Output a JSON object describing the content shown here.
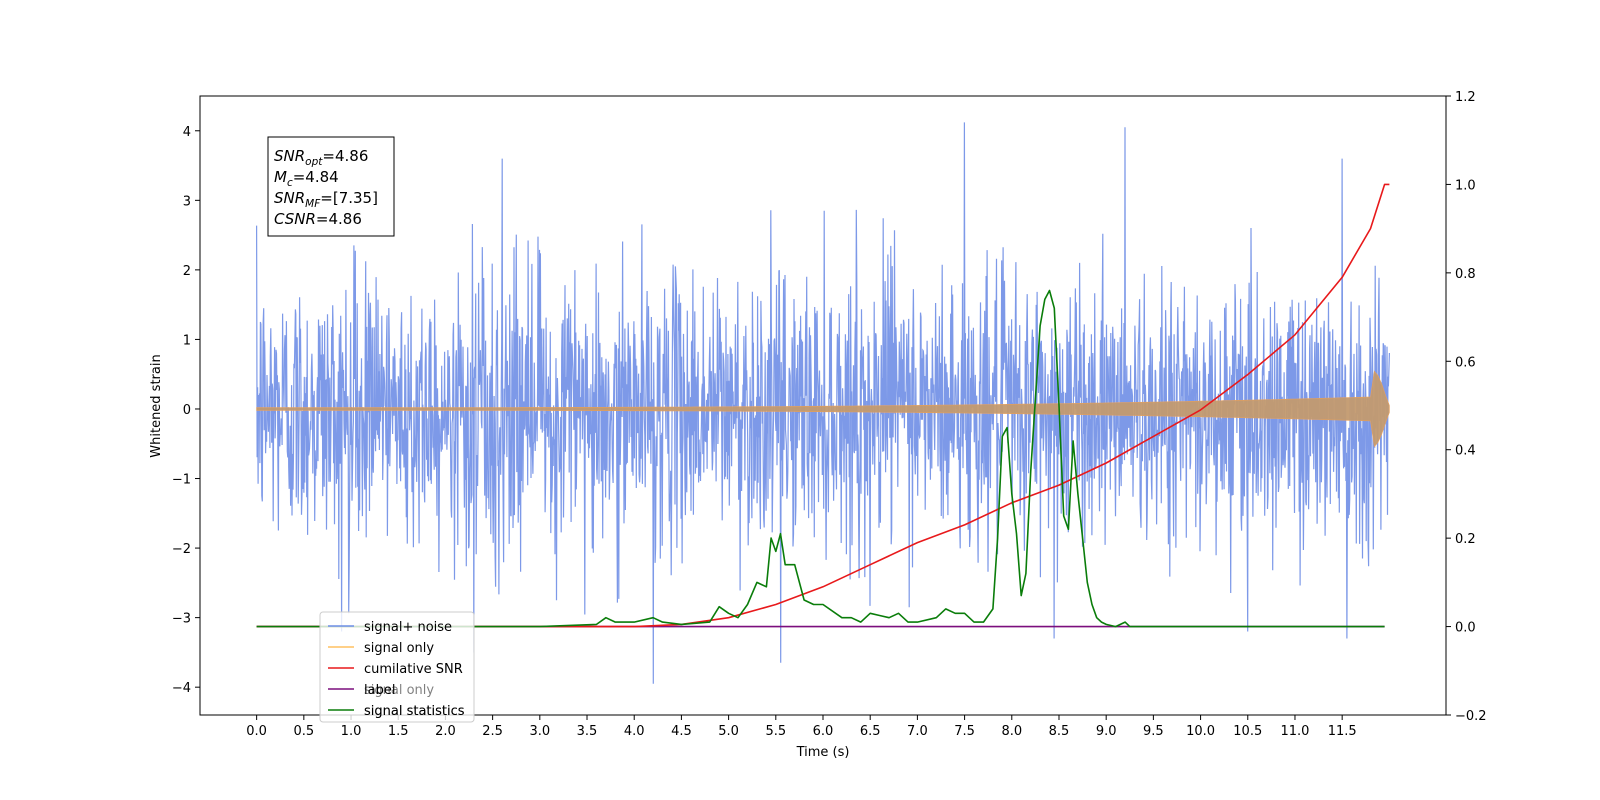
{
  "chart_data": {
    "type": "line",
    "xlabel": "Time (s)",
    "ylabel": "Whitened strain",
    "xlim": [
      -0.6,
      12.6
    ],
    "ylim": [
      -4.4,
      4.5
    ],
    "y2lim": [
      -0.2,
      1.2
    ],
    "x_ticks": [
      "0.0",
      "0.5",
      "1.0",
      "1.5",
      "2.0",
      "2.5",
      "3.0",
      "3.5",
      "4.0",
      "4.5",
      "5.0",
      "5.5",
      "6.0",
      "6.5",
      "7.0",
      "7.5",
      "8.0",
      "8.5",
      "9.0",
      "9.5",
      "10.0",
      "10.5",
      "11.0",
      "11.5"
    ],
    "y_ticks": [
      "−4",
      "−3",
      "−2",
      "−1",
      "0",
      "1",
      "2",
      "3",
      "4"
    ],
    "y2_ticks": [
      "−0.2",
      "0.0",
      "0.2",
      "0.4",
      "0.6",
      "0.8",
      "1.0",
      "1.2"
    ],
    "annotation": {
      "lines": [
        {
          "main": "SNR",
          "sub": "opt",
          "rest": "=4.86"
        },
        {
          "main": "M",
          "sub": "c",
          "rest": "=4.84"
        },
        {
          "main": "SNR",
          "sub": "MF",
          "rest": "=[7.35]"
        },
        {
          "main": "CSNR",
          "sub": "",
          "rest": "=4.86"
        }
      ]
    },
    "legend": {
      "position": "lower-left",
      "entries": [
        "signal+ noise",
        "signal only",
        "cumilative SNR",
        "label",
        "signal statistics"
      ],
      "hidden_entries": [
        "signal only",
        "signal statistics"
      ]
    },
    "series": [
      {
        "name": "signal+ noise",
        "color": "#6f8ee6",
        "axis": "left",
        "kind": "noise",
        "x_range": [
          0.0,
          12.0
        ],
        "envelope": [
          -2.4,
          2.5
        ],
        "outliers": [
          {
            "x": 2.6,
            "y": 3.6
          },
          {
            "x": 4.2,
            "y": -3.95
          },
          {
            "x": 5.55,
            "y": -3.65
          },
          {
            "x": 7.5,
            "y": 4.12
          },
          {
            "x": 8.45,
            "y": -3.3
          },
          {
            "x": 9.2,
            "y": 4.05
          },
          {
            "x": 11.5,
            "y": 3.6
          },
          {
            "x": 11.55,
            "y": -3.3
          },
          {
            "x": 0.9,
            "y": -3.2
          },
          {
            "x": 2.3,
            "y": -3.5
          },
          {
            "x": 10.5,
            "y": -3.2
          }
        ]
      },
      {
        "name": "signal only",
        "color": "#e8a05b",
        "axis": "left",
        "kind": "chirp",
        "x_range": [
          0.0,
          12.0
        ],
        "amp_end": 0.55
      },
      {
        "name": "cumilative SNR",
        "color": "#e8191b",
        "axis": "right",
        "x": [
          0.0,
          1.0,
          2.0,
          3.0,
          4.0,
          4.5,
          5.0,
          5.5,
          6.0,
          6.5,
          7.0,
          7.5,
          8.0,
          8.5,
          9.0,
          9.5,
          10.0,
          10.5,
          11.0,
          11.5,
          11.8,
          11.95,
          12.0
        ],
        "y": [
          0.0,
          0.0,
          0.0,
          0.0,
          0.0,
          0.005,
          0.02,
          0.05,
          0.09,
          0.14,
          0.19,
          0.23,
          0.28,
          0.32,
          0.37,
          0.43,
          0.49,
          0.57,
          0.66,
          0.79,
          0.9,
          1.0,
          1.0
        ]
      },
      {
        "name": "label",
        "color": "#7b0e7d",
        "axis": "right",
        "x": [
          0.0,
          11.95
        ],
        "y": [
          0.0,
          0.0
        ]
      },
      {
        "name": "signal statistics",
        "color": "#0a7d0a",
        "axis": "right",
        "x": [
          0.0,
          3.0,
          3.6,
          3.7,
          3.8,
          4.0,
          4.2,
          4.3,
          4.5,
          4.8,
          4.9,
          5.0,
          5.1,
          5.2,
          5.3,
          5.4,
          5.45,
          5.5,
          5.55,
          5.6,
          5.7,
          5.8,
          5.9,
          6.0,
          6.2,
          6.3,
          6.4,
          6.5,
          6.6,
          6.7,
          6.8,
          6.9,
          7.0,
          7.2,
          7.3,
          7.4,
          7.5,
          7.6,
          7.7,
          7.8,
          7.85,
          7.9,
          7.95,
          8.0,
          8.05,
          8.1,
          8.15,
          8.2,
          8.3,
          8.35,
          8.4,
          8.45,
          8.5,
          8.55,
          8.6,
          8.65,
          8.7,
          8.75,
          8.8,
          8.85,
          8.9,
          8.95,
          9.0,
          9.1,
          9.2,
          9.25,
          9.3,
          9.4,
          9.5,
          10.0,
          11.0,
          11.95
        ],
        "y": [
          0.0,
          0.0,
          0.005,
          0.02,
          0.01,
          0.01,
          0.02,
          0.01,
          0.005,
          0.01,
          0.045,
          0.03,
          0.02,
          0.05,
          0.1,
          0.09,
          0.2,
          0.17,
          0.21,
          0.14,
          0.14,
          0.06,
          0.05,
          0.05,
          0.02,
          0.02,
          0.01,
          0.03,
          0.025,
          0.02,
          0.03,
          0.01,
          0.01,
          0.02,
          0.04,
          0.03,
          0.03,
          0.01,
          0.01,
          0.04,
          0.2,
          0.43,
          0.45,
          0.3,
          0.21,
          0.07,
          0.12,
          0.35,
          0.68,
          0.74,
          0.76,
          0.72,
          0.5,
          0.25,
          0.22,
          0.42,
          0.3,
          0.2,
          0.1,
          0.05,
          0.02,
          0.01,
          0.005,
          0.0,
          0.01,
          0.0,
          0.0,
          0.0,
          0.0,
          0.0,
          0.0,
          0.0
        ]
      }
    ]
  }
}
